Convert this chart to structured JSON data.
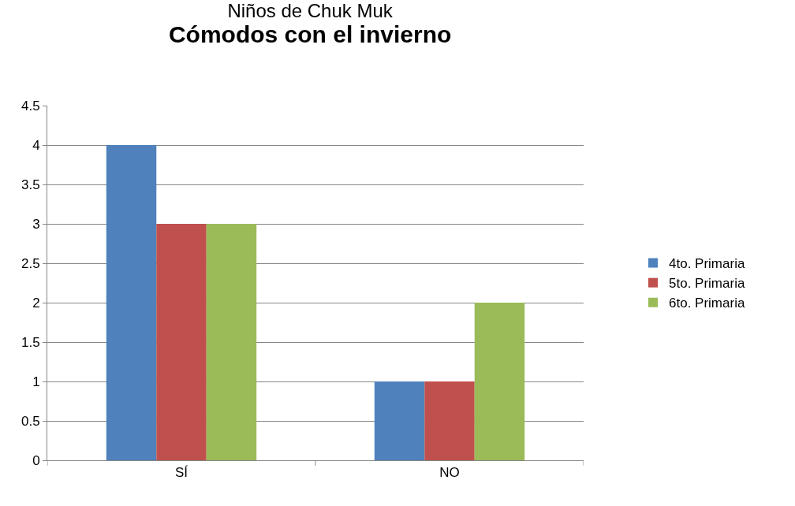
{
  "chart_data": {
    "type": "bar",
    "title": "Niños de Chuk Muk",
    "subtitle": "Cómodos con el invierno",
    "categories": [
      "SÍ",
      "NO"
    ],
    "series": [
      {
        "name": "4to. Primaria",
        "color": "#4f81bd",
        "values": [
          4,
          1
        ]
      },
      {
        "name": "5to. Primaria",
        "color": "#c0504d",
        "values": [
          3,
          1
        ]
      },
      {
        "name": "6to. Primaria",
        "color": "#9bbb59",
        "values": [
          3,
          2
        ]
      }
    ],
    "ylim": [
      0,
      4.5
    ],
    "yticks": [
      0,
      0.5,
      1,
      1.5,
      2,
      2.5,
      3,
      3.5,
      4,
      4.5
    ],
    "grid": "y",
    "legend": "right"
  }
}
